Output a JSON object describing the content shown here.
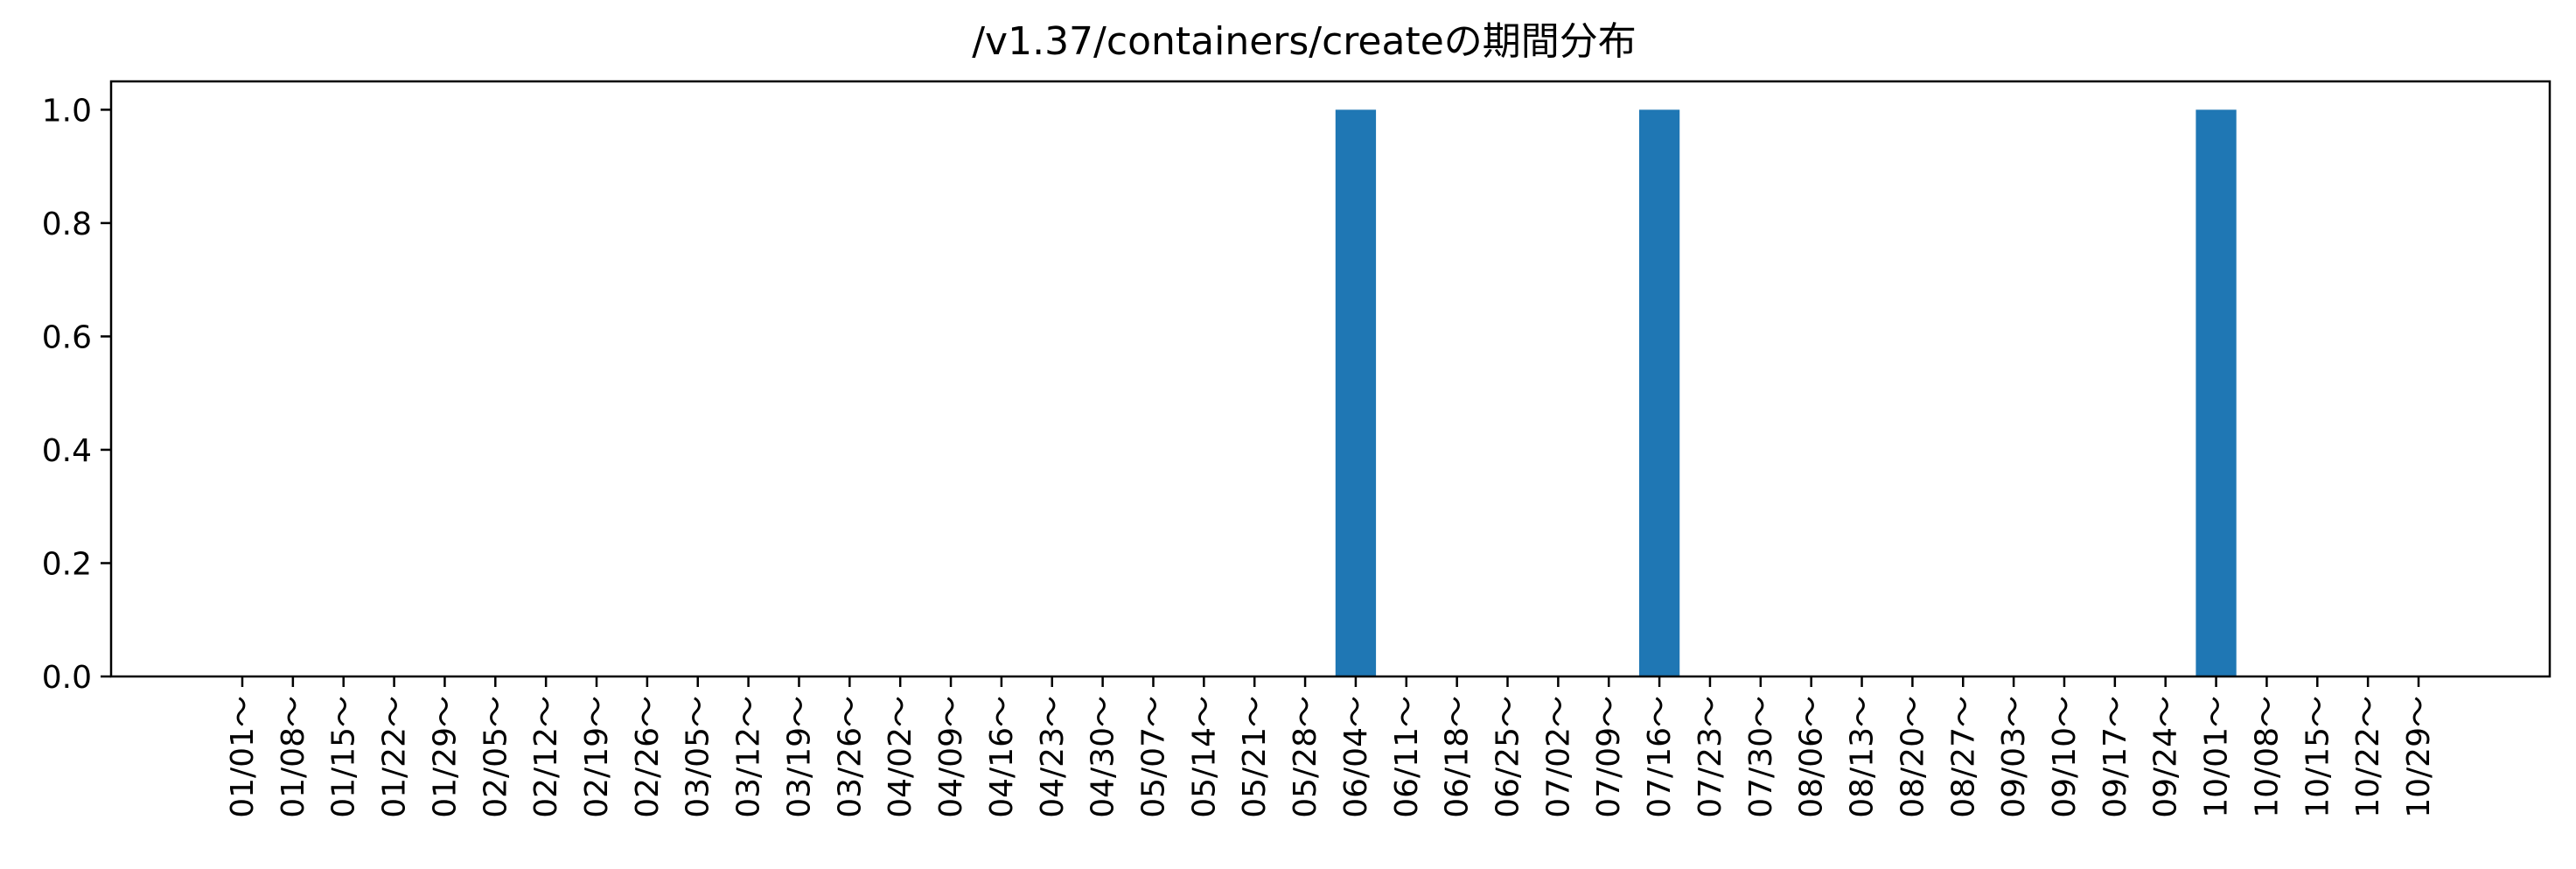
{
  "chart_data": {
    "type": "bar",
    "title": "/v1.37/containers/createの期間分布",
    "xlabel": "",
    "ylabel": "",
    "ylim": [
      0,
      1.05
    ],
    "yticks": [
      "0.0",
      "0.2",
      "0.4",
      "0.6",
      "0.8",
      "1.0"
    ],
    "ytick_values": [
      0.0,
      0.2,
      0.4,
      0.6,
      0.8,
      1.0
    ],
    "grid": false,
    "bar_color": "#1f77b4",
    "categories": [
      "01/01～",
      "01/08～",
      "01/15～",
      "01/22～",
      "01/29～",
      "02/05～",
      "02/12～",
      "02/19～",
      "02/26～",
      "03/05～",
      "03/12～",
      "03/19～",
      "03/26～",
      "04/02～",
      "04/09～",
      "04/16～",
      "04/23～",
      "04/30～",
      "05/07～",
      "05/14～",
      "05/21～",
      "05/28～",
      "06/04～",
      "06/11～",
      "06/18～",
      "06/25～",
      "07/02～",
      "07/09～",
      "07/16～",
      "07/23～",
      "07/30～",
      "08/06～",
      "08/13～",
      "08/20～",
      "08/27～",
      "09/03～",
      "09/10～",
      "09/17～",
      "09/24～",
      "10/01～",
      "10/08～",
      "10/15～",
      "10/22～",
      "10/29～"
    ],
    "values": [
      0,
      0,
      0,
      0,
      0,
      0,
      0,
      0,
      0,
      0,
      0,
      0,
      0,
      0,
      0,
      0,
      0,
      0,
      0,
      0,
      0,
      0,
      1,
      0,
      0,
      0,
      0,
      0,
      1,
      0,
      0,
      0,
      0,
      0,
      0,
      0,
      0,
      0,
      0,
      1,
      0,
      0,
      0,
      0
    ]
  }
}
